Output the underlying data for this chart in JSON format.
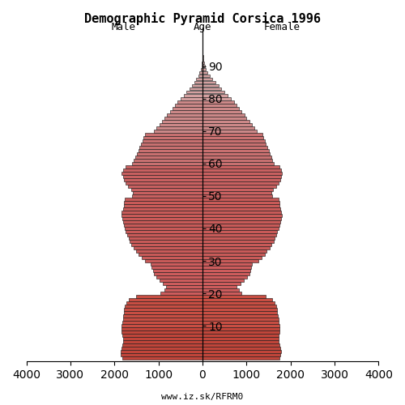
{
  "title": "Demographic Pyramid Corsica 1996",
  "male_label": "Male",
  "female_label": "Female",
  "age_label": "Age",
  "footnote": "www.iz.sk/RFRM0",
  "background": "#ffffff",
  "bar_edge_color": "#111111",
  "bar_linewidth": 0.4,
  "bar_height": 0.9,
  "xlim": 4000,
  "male": [
    1820,
    1850,
    1860,
    1840,
    1820,
    1810,
    1800,
    1820,
    1830,
    1840,
    1830,
    1820,
    1810,
    1800,
    1790,
    1780,
    1770,
    1720,
    1680,
    1500,
    950,
    870,
    820,
    900,
    980,
    1050,
    1100,
    1130,
    1150,
    1170,
    1300,
    1380,
    1450,
    1500,
    1560,
    1610,
    1650,
    1680,
    1710,
    1740,
    1760,
    1780,
    1800,
    1820,
    1840,
    1830,
    1810,
    1790,
    1780,
    1760,
    1600,
    1580,
    1620,
    1700,
    1750,
    1780,
    1810,
    1830,
    1800,
    1750,
    1600,
    1560,
    1520,
    1490,
    1460,
    1430,
    1400,
    1370,
    1340,
    1310,
    1100,
    1050,
    980,
    920,
    860,
    800,
    740,
    680,
    620,
    570,
    490,
    420,
    360,
    300,
    240,
    185,
    140,
    100,
    65,
    40,
    25,
    14,
    8,
    5,
    3,
    2,
    1,
    0,
    0,
    0
  ],
  "female": [
    1740,
    1760,
    1780,
    1760,
    1740,
    1730,
    1720,
    1730,
    1740,
    1750,
    1740,
    1730,
    1720,
    1710,
    1700,
    1690,
    1680,
    1630,
    1590,
    1430,
    880,
    820,
    780,
    860,
    940,
    1010,
    1060,
    1090,
    1110,
    1130,
    1260,
    1340,
    1410,
    1460,
    1520,
    1570,
    1610,
    1640,
    1670,
    1700,
    1720,
    1740,
    1760,
    1780,
    1800,
    1790,
    1770,
    1750,
    1740,
    1720,
    1580,
    1560,
    1600,
    1680,
    1730,
    1760,
    1790,
    1810,
    1790,
    1740,
    1620,
    1590,
    1560,
    1530,
    1500,
    1470,
    1440,
    1410,
    1380,
    1360,
    1230,
    1180,
    1120,
    1060,
    1000,
    950,
    890,
    830,
    770,
    720,
    640,
    570,
    500,
    430,
    360,
    290,
    225,
    165,
    112,
    72,
    46,
    28,
    17,
    10,
    6,
    3,
    2,
    1,
    0,
    0
  ],
  "age_colors": [
    "#c0453a",
    "#c0453a",
    "#c0453a",
    "#c0453a",
    "#c0453a",
    "#c0453a",
    "#c0453a",
    "#c0453a",
    "#c0453a",
    "#c0453a",
    "#c84e43",
    "#c84e43",
    "#c84e43",
    "#c84e43",
    "#c84e43",
    "#c84e43",
    "#c84e43",
    "#c84e43",
    "#c84e43",
    "#c84e43",
    "#cd5c5c",
    "#cd5c5c",
    "#cd5c5c",
    "#cd5c5c",
    "#cd5c5c",
    "#cd5c5c",
    "#cd5c5c",
    "#cd5c5c",
    "#cd5c5c",
    "#cd5c5c",
    "#c85a58",
    "#c85a58",
    "#c85a58",
    "#c85a58",
    "#c85a58",
    "#c85a58",
    "#c85a58",
    "#c85a58",
    "#c85a58",
    "#c85a58",
    "#c85a58",
    "#c85a58",
    "#c85a58",
    "#c85a58",
    "#c85a58",
    "#c85a58",
    "#c85a58",
    "#c85a58",
    "#c85a58",
    "#c85a58",
    "#c86060",
    "#c86060",
    "#c86060",
    "#c86060",
    "#c86060",
    "#c86060",
    "#c86060",
    "#c86060",
    "#c86060",
    "#c86060",
    "#c87070",
    "#c87070",
    "#c87070",
    "#c87070",
    "#c87070",
    "#c87070",
    "#c87070",
    "#c87070",
    "#c87070",
    "#c87070",
    "#cc8888",
    "#cc8888",
    "#cc8888",
    "#cc8888",
    "#cc8888",
    "#cc8888",
    "#cc8888",
    "#cc8888",
    "#cc8888",
    "#cc8888",
    "#d4a0a0",
    "#d4a0a0",
    "#d4a0a0",
    "#d4a0a0",
    "#d4a0a0",
    "#d4a0a0",
    "#d4a0a0",
    "#d4a0a0",
    "#d4a0a0",
    "#d4a0a0",
    "#ddb8b8",
    "#ddb8b8",
    "#ddb8b8",
    "#ddb8b8",
    "#ddb8b8",
    "#ddb8b8",
    "#ddb8b8",
    "#ddb8b8",
    "#ddb8b8",
    "#ddb8b8"
  ]
}
